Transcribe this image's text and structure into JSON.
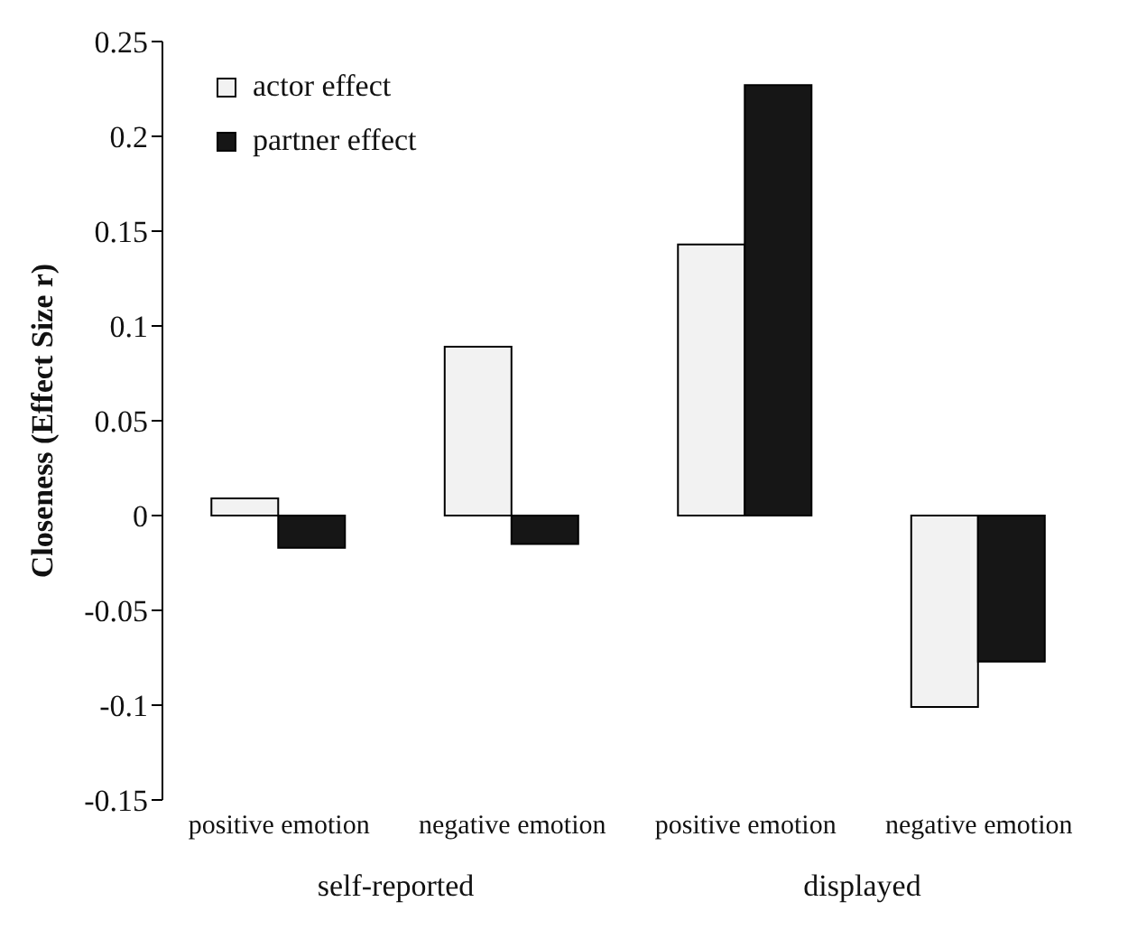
{
  "chart_data": {
    "type": "bar",
    "ylabel": "Closeness (Effect Size r)",
    "categories": [
      "positive emotion",
      "negative emotion",
      "positive emotion",
      "negative emotion"
    ],
    "series": [
      {
        "name": "actor effect",
        "color": "#f2f2f2",
        "values": [
          0.009,
          0.089,
          0.143,
          -0.101
        ]
      },
      {
        "name": "partner effect",
        "color": "#161616",
        "values": [
          -0.017,
          -0.015,
          0.227,
          -0.077
        ]
      }
    ],
    "ylim": [
      -0.15,
      0.25
    ],
    "yticks": [
      -0.15,
      -0.1,
      -0.05,
      0,
      0.05,
      0.1,
      0.15,
      0.2,
      0.25
    ],
    "grid": false,
    "legend": "top left",
    "annotations": [
      "self-reported",
      "displayed"
    ]
  }
}
